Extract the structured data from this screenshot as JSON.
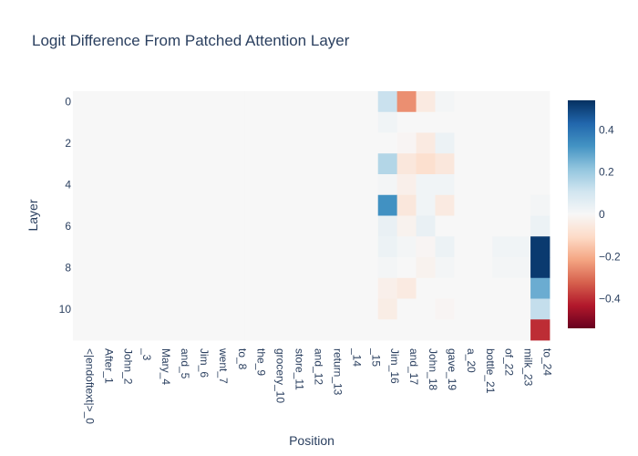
{
  "chart_data": {
    "type": "heatmap",
    "title": "Logit Difference From Patched Attention Layer",
    "xlabel": "Position",
    "ylabel": "Layer",
    "x": [
      "<|endoftext|>_0",
      "After_1",
      "John_2",
      "_3",
      "Mary_4",
      "and_5",
      "Jim_6",
      "went_7",
      "to_8",
      "the_9",
      "grocery_10",
      "store_11",
      "and_12",
      "return_13",
      "_14",
      "_15",
      "Jim_16",
      "and_17",
      "John_18",
      "gave_19",
      "a_20",
      "bottle_21",
      "of_22",
      "milk_23",
      "to_24"
    ],
    "y": [
      0,
      1,
      2,
      3,
      4,
      5,
      6,
      7,
      8,
      9,
      10,
      11
    ],
    "y_tick_labels": [
      "0",
      "2",
      "4",
      "6",
      "8",
      "10"
    ],
    "z": [
      [
        0,
        0,
        0,
        0,
        0,
        0,
        0,
        0,
        0,
        0,
        0,
        0,
        0,
        0,
        0,
        0,
        0.12,
        -0.25,
        -0.05,
        0.01,
        0,
        0,
        0,
        0,
        0
      ],
      [
        0,
        0,
        0,
        0,
        0,
        0,
        0,
        0,
        0,
        0,
        0,
        0,
        0,
        0,
        0,
        0,
        0.02,
        0,
        0,
        0,
        0,
        0,
        0,
        0,
        0
      ],
      [
        0,
        0,
        0,
        0,
        0,
        0,
        0,
        0,
        0,
        0,
        0,
        0,
        0,
        0,
        0,
        0,
        0,
        -0.01,
        -0.05,
        0.03,
        0,
        0,
        0,
        0,
        0
      ],
      [
        0,
        0,
        0,
        0,
        0,
        0,
        0,
        0,
        0,
        0,
        0,
        0,
        0,
        0,
        0,
        0,
        0.16,
        -0.06,
        -0.09,
        -0.06,
        0,
        0,
        0,
        0,
        0
      ],
      [
        0,
        0,
        0,
        0,
        0,
        0,
        0,
        0,
        0,
        0,
        0,
        0,
        0,
        0,
        0,
        0,
        0.01,
        -0.03,
        0.02,
        0.02,
        0,
        0,
        0,
        0,
        0
      ],
      [
        0,
        0,
        0,
        0,
        0,
        0,
        0,
        0,
        0,
        0,
        0,
        0,
        0,
        0,
        0,
        0,
        0.33,
        -0.06,
        0.02,
        -0.05,
        0,
        0,
        0,
        0,
        0.01
      ],
      [
        0,
        0,
        0,
        0,
        0,
        0,
        0,
        0,
        0,
        0,
        0,
        0,
        0,
        0,
        0,
        0,
        0.04,
        -0.02,
        0.04,
        0,
        0,
        0,
        0,
        0,
        0.03
      ],
      [
        0,
        0,
        0,
        0,
        0,
        0,
        0,
        0,
        0,
        0,
        0,
        0,
        0,
        0,
        0,
        0,
        0.03,
        0.01,
        -0.01,
        0.03,
        0,
        0,
        0.02,
        0.02,
        0.52
      ],
      [
        0,
        0,
        0,
        0,
        0,
        0,
        0,
        0,
        0,
        0,
        0,
        0,
        0,
        0,
        0,
        0,
        0.01,
        0,
        -0.02,
        0.01,
        0,
        0,
        0.01,
        0.01,
        0.52
      ],
      [
        0,
        0,
        0,
        0,
        0,
        0,
        0,
        0,
        0,
        0,
        0,
        0,
        0,
        0,
        0,
        0,
        -0.03,
        -0.05,
        0,
        0,
        0,
        0,
        0,
        0,
        0.27
      ],
      [
        0,
        0,
        0,
        0,
        0,
        0,
        0,
        0,
        0,
        0,
        0,
        0,
        0,
        0,
        0,
        0,
        -0.04,
        0,
        0,
        -0.01,
        0,
        0,
        0,
        0,
        0.13
      ],
      [
        0,
        0,
        0,
        0,
        0,
        0,
        0,
        0,
        0,
        0,
        0,
        0,
        0,
        0,
        0,
        0,
        0,
        0,
        0,
        0,
        0,
        0,
        0,
        0,
        -0.4
      ]
    ],
    "zmin": -0.54,
    "zmax": 0.54,
    "colorscale": "RdBu",
    "colorbar_ticks": [
      0.4,
      0.2,
      0,
      -0.2,
      -0.4
    ],
    "colorbar_tick_labels": [
      "0.4",
      "0.2",
      "0",
      "−0.2",
      "−0.4"
    ],
    "grid": false,
    "y_reversed": true
  }
}
